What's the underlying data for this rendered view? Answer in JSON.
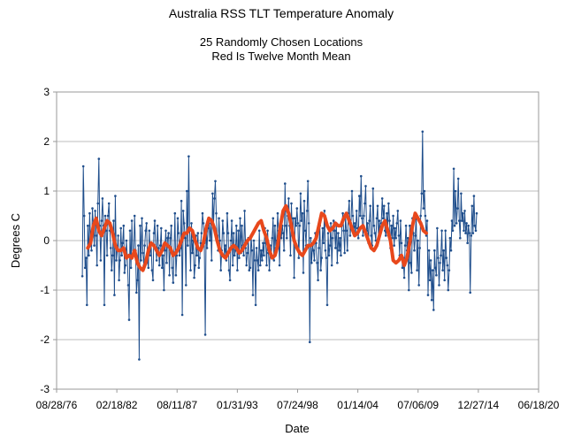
{
  "chart_data": {
    "type": "line",
    "title": "Australia RSS TLT Temperature Anomaly",
    "subtitle_lines": [
      "25 Randomly Chosen Locations",
      "Red Is Twelve Month Mean"
    ],
    "xlabel": "Date",
    "ylabel": "Degrees C",
    "x_tick_labels": [
      "08/28/76",
      "02/18/82",
      "08/11/87",
      "01/31/93",
      "07/24/98",
      "01/14/04",
      "07/06/09",
      "12/27/14",
      "06/18/20"
    ],
    "y_tick_labels": [
      "3",
      "2",
      "1",
      "0",
      "-1",
      "-2",
      "-3"
    ],
    "ylim": [
      -3,
      3
    ],
    "xlim_year": [
      1976.66,
      2020.46
    ],
    "grid": "horizontal",
    "colors": {
      "monthly": "#1f4e8c",
      "mean": "#e8481c",
      "grid": "#bdbdbd"
    },
    "series": [
      {
        "style": "monthly",
        "start_year": 1979.0,
        "step": 0.0833333,
        "values": [
          -0.72,
          1.5,
          0.5,
          -0.55,
          -0.35,
          -1.3,
          0.3,
          -0.3,
          0.55,
          0.0,
          -0.2,
          0.65,
          0.3,
          -0.1,
          0.6,
          0.1,
          -0.5,
          0.75,
          1.65,
          0.3,
          -0.4,
          0.4,
          0.85,
          0.3,
          -1.3,
          0.5,
          0.2,
          -0.3,
          0.5,
          0.75,
          0.2,
          -0.15,
          -0.6,
          -0.3,
          0.4,
          -1.1,
          0.9,
          -0.4,
          -0.2,
          0.1,
          -0.8,
          -0.4,
          0.25,
          -0.3,
          -0.05,
          0.3,
          -0.65,
          -0.5,
          0.0,
          -0.3,
          -0.9,
          -1.6,
          0.2,
          -0.55,
          0.4,
          -0.3,
          -0.25,
          0.5,
          -0.2,
          -1.05,
          -0.8,
          -0.1,
          -2.4,
          0.3,
          -0.4,
          0.45,
          -0.25,
          -0.5,
          -0.1,
          0.2,
          0.35,
          -0.4,
          -0.55,
          0.2,
          -0.3,
          -0.05,
          -0.6,
          -0.8,
          0.15,
          0.4,
          -0.15,
          -0.4,
          0.3,
          -0.15,
          -0.5,
          -0.1,
          0.25,
          -0.55,
          -0.3,
          -1.0,
          -0.2,
          0.2,
          -0.45,
          0.05,
          0.15,
          -0.7,
          0.05,
          0.3,
          -0.55,
          -0.85,
          -0.25,
          0.55,
          -0.7,
          -0.3,
          0.45,
          0.15,
          -0.3,
          -0.15,
          0.8,
          -1.5,
          0.6,
          0.35,
          0.05,
          -0.9,
          1.0,
          -0.1,
          1.7,
          0.2,
          -0.6,
          0.35,
          -0.25,
          0.0,
          -0.75,
          -0.5,
          0.1,
          -0.3,
          0.15,
          -0.55,
          -0.35,
          -0.05,
          0.15,
          0.55,
          0.35,
          -0.05,
          -1.9,
          0.3,
          -0.15,
          0.25,
          0.45,
          0.0,
          0.35,
          -0.4,
          0.95,
          0.3,
          0.85,
          1.2,
          0.55,
          0.1,
          -0.2,
          0.45,
          0.0,
          -0.6,
          -0.2,
          0.4,
          0.15,
          -0.3,
          -0.1,
          -0.4,
          0.55,
          0.15,
          -0.6,
          -0.8,
          0.0,
          0.4,
          -0.5,
          0.15,
          -0.3,
          -0.2,
          0.3,
          -0.6,
          0.2,
          -0.35,
          0.45,
          -0.25,
          0.3,
          -0.1,
          -0.3,
          0.6,
          -0.15,
          -0.5,
          -0.25,
          0.05,
          -0.6,
          -0.55,
          0.1,
          -0.2,
          -1.1,
          0.0,
          -0.4,
          -1.3,
          -0.15,
          -0.4,
          -0.6,
          0.2,
          -0.5,
          -0.2,
          -0.4,
          -0.05,
          -0.3,
          0.25,
          -0.05,
          -0.5,
          0.2,
          -0.25,
          -0.6,
          -0.1,
          -0.3,
          0.05,
          0.45,
          -0.4,
          0.3,
          -0.15,
          0.0,
          0.55,
          0.2,
          -0.5,
          0.35,
          0.05,
          0.3,
          0.15,
          -0.2,
          1.15,
          0.3,
          0.05,
          0.5,
          0.85,
          0.3,
          -0.3,
          0.75,
          0.1,
          0.45,
          -0.75,
          0.45,
          0.3,
          0.65,
          0.35,
          -0.35,
          0.3,
          0.95,
          0.4,
          0.55,
          -0.65,
          0.8,
          0.2,
          -0.1,
          0.6,
          1.2,
          0.35,
          -2.05,
          0.05,
          -0.45,
          -0.1,
          -0.2,
          -0.4,
          0.15,
          -0.05,
          -0.45,
          -0.8,
          -0.15,
          0.3,
          -0.6,
          -0.35,
          0.25,
          -0.05,
          0.6,
          -0.2,
          -0.35,
          -1.3,
          0.15,
          -0.3,
          -0.1,
          0.35,
          -0.5,
          0.05,
          0.4,
          0.2,
          -0.15,
          0.35,
          -0.45,
          0.15,
          -0.2,
          0.05,
          -0.3,
          0.3,
          0.55,
          0.2,
          -0.25,
          0.5,
          0.2,
          -0.2,
          0.55,
          0.8,
          0.1,
          0.35,
          1.0,
          0.5,
          0.2,
          0.35,
          0.15,
          0.6,
          0.25,
          0.05,
          0.9,
          0.5,
          1.3,
          0.45,
          0.1,
          0.5,
          0.75,
          1.1,
          0.2,
          0.35,
          -0.05,
          0.4,
          0.7,
          0.1,
          -0.1,
          1.05,
          0.3,
          0.15,
          0.0,
          0.45,
          0.7,
          0.05,
          0.4,
          0.15,
          0.35,
          0.85,
          0.45,
          0.7,
          0.2,
          0.1,
          0.55,
          0.25,
          0.75,
          0.4,
          -0.15,
          0.3,
          0.05,
          0.5,
          -0.1,
          0.25,
          0.05,
          0.35,
          0.6,
          0.1,
          -0.3,
          0.4,
          -0.05,
          -0.55,
          -0.35,
          -0.75,
          -0.1,
          0.3,
          -0.2,
          0.05,
          -1.0,
          0.3,
          -0.45,
          -0.65,
          0.45,
          0.15,
          -0.2,
          0.1,
          0.5,
          -0.6,
          0.0,
          -0.9,
          -0.15,
          0.5,
          0.95,
          2.2,
          0.65,
          1.0,
          0.5,
          0.1,
          0.4,
          -1.1,
          -0.2,
          -0.8,
          -0.4,
          -1.2,
          -0.6,
          -1.4,
          -0.2,
          -0.55,
          -0.7,
          0.25,
          -0.35,
          -0.9,
          -0.45,
          -0.3,
          0.2,
          -0.6,
          -0.2,
          -0.8,
          0.2,
          -0.35,
          -0.5,
          -1.0,
          -0.6,
          0.05,
          -0.2,
          0.4,
          0.2,
          1.45,
          0.3,
          1.0,
          0.35,
          0.65,
          1.25,
          0.4,
          0.05,
          0.95,
          0.4,
          0.55,
          0.2,
          0.6,
          0.15,
          0.35,
          -0.05,
          0.3,
          0.15,
          -1.05,
          0.1,
          0.7,
          0.15,
          0.9,
          0.3,
          0.2,
          0.55
        ]
      },
      {
        "style": "mean",
        "start_year": 1979.5,
        "step": 0.25,
        "values": [
          -0.15,
          -0.05,
          0.3,
          0.45,
          0.2,
          0.1,
          0.25,
          0.4,
          0.35,
          0.15,
          -0.1,
          -0.2,
          -0.2,
          -0.15,
          -0.35,
          -0.3,
          -0.35,
          -0.2,
          -0.45,
          -0.55,
          -0.6,
          -0.45,
          -0.2,
          -0.05,
          -0.1,
          -0.2,
          -0.3,
          -0.2,
          -0.05,
          -0.1,
          -0.15,
          -0.3,
          -0.25,
          -0.15,
          0.0,
          0.15,
          0.15,
          0.25,
          0.2,
          0.0,
          -0.15,
          -0.2,
          -0.05,
          0.25,
          0.45,
          0.4,
          0.25,
          0.0,
          -0.2,
          -0.3,
          -0.35,
          -0.25,
          -0.15,
          -0.1,
          -0.15,
          -0.25,
          -0.2,
          -0.1,
          0.0,
          0.05,
          0.15,
          0.25,
          0.35,
          0.4,
          0.2,
          0.05,
          -0.2,
          -0.35,
          -0.3,
          -0.1,
          0.3,
          0.6,
          0.7,
          0.55,
          0.3,
          0.0,
          -0.15,
          -0.25,
          -0.3,
          -0.2,
          -0.1,
          -0.1,
          -0.05,
          0.05,
          0.3,
          0.55,
          0.5,
          0.3,
          0.2,
          0.25,
          0.35,
          0.3,
          0.3,
          0.45,
          0.55,
          0.4,
          0.25,
          0.1,
          0.15,
          0.25,
          0.3,
          0.15,
          0.0,
          -0.15,
          -0.2,
          -0.1,
          0.1,
          0.3,
          0.4,
          0.2,
          0.0,
          -0.4,
          -0.45,
          -0.4,
          -0.3,
          -0.5,
          -0.35,
          -0.05,
          0.3,
          0.55,
          0.45,
          0.35,
          0.2,
          0.15
        ]
      }
    ]
  }
}
